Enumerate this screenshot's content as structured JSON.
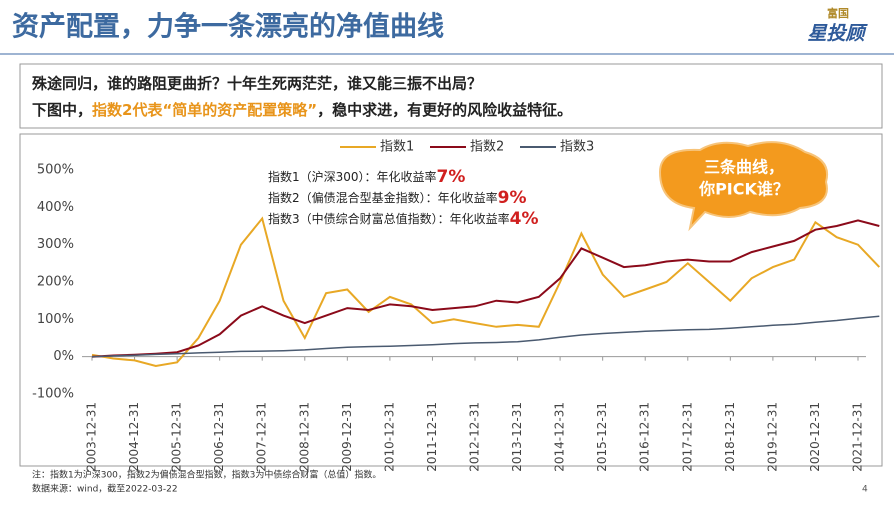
{
  "header": {
    "title": "资产配置，力争一条漂亮的净值曲线",
    "logo_top": "富国",
    "logo_bottom": "星投顾"
  },
  "intro": {
    "line1": "殊途同归，谁的路阻更曲折？十年生死两茫茫，谁又能三振不出局？",
    "line2": [
      "下图中，",
      "指数2代表“简单的资产配置策略”",
      "，稳中求进，有更好的风险收益特征。"
    ]
  },
  "chart_data": {
    "type": "line",
    "categories": [
      "2003-12-31",
      null,
      "2004-12-31",
      null,
      "2005-12-31",
      null,
      "2006-12-31",
      null,
      "2007-12-31",
      null,
      "2008-12-31",
      null,
      "2009-12-31",
      null,
      "2010-12-31",
      null,
      "2011-12-31",
      null,
      "2012-12-31",
      null,
      "2013-12-31",
      null,
      "2014-12-31",
      null,
      "2015-12-31",
      null,
      "2016-12-31",
      null,
      "2017-12-31",
      null,
      "2018-12-31",
      null,
      "2019-12-31",
      null,
      "2020-12-31",
      null,
      "2021-12-31",
      null
    ],
    "series": [
      {
        "name": "指数1",
        "color": "#e8a825",
        "values": [
          5,
          -5,
          -10,
          -25,
          -15,
          50,
          150,
          300,
          370,
          150,
          50,
          170,
          180,
          120,
          160,
          140,
          90,
          100,
          90,
          80,
          85,
          80,
          200,
          330,
          220,
          160,
          180,
          200,
          250,
          200,
          150,
          210,
          240,
          260,
          360,
          320,
          300,
          240
        ]
      },
      {
        "name": "指数2",
        "color": "#8b0a1a",
        "values": [
          0,
          3,
          5,
          8,
          12,
          30,
          60,
          110,
          135,
          110,
          90,
          110,
          130,
          125,
          140,
          135,
          125,
          130,
          135,
          150,
          145,
          160,
          210,
          290,
          265,
          240,
          245,
          255,
          260,
          255,
          255,
          280,
          295,
          310,
          340,
          350,
          365,
          350
        ]
      },
      {
        "name": "指数3",
        "color": "#4a5a70",
        "values": [
          0,
          2,
          4,
          6,
          8,
          10,
          12,
          14,
          15,
          16,
          18,
          22,
          25,
          27,
          28,
          30,
          32,
          35,
          37,
          38,
          40,
          45,
          52,
          58,
          62,
          65,
          68,
          70,
          72,
          73,
          76,
          80,
          84,
          87,
          92,
          97,
          103,
          108
        ]
      }
    ],
    "ylim": [
      -100,
      500
    ],
    "yticks": [
      {
        "value": -100,
        "label": "-100%"
      },
      {
        "value": 0,
        "label": "0%"
      },
      {
        "value": 100,
        "label": "100%"
      },
      {
        "value": 200,
        "label": "200%"
      },
      {
        "value": 300,
        "label": "300%"
      },
      {
        "value": 400,
        "label": "400%"
      },
      {
        "value": 500,
        "label": "500%"
      }
    ],
    "legend": "top",
    "annotations": [
      {
        "text": "指数1（沪深300）：年化收益率",
        "rate": "7%"
      },
      {
        "text": "指数2（偏债混合型基金指数）：年化收益率",
        "rate": "9%"
      },
      {
        "text": "指数3（中债综合财富总值指数）：年化收益率",
        "rate": "4%"
      }
    ],
    "callout": [
      "三条曲线，",
      "你PICK谁？"
    ]
  },
  "footer": {
    "note": "注：指数1为沪深300，指数2为偏债混合型指数，指数3为中债综合财富（总值）指数。",
    "source": "数据来源：wind，截至2022-03-22",
    "page": "4"
  }
}
